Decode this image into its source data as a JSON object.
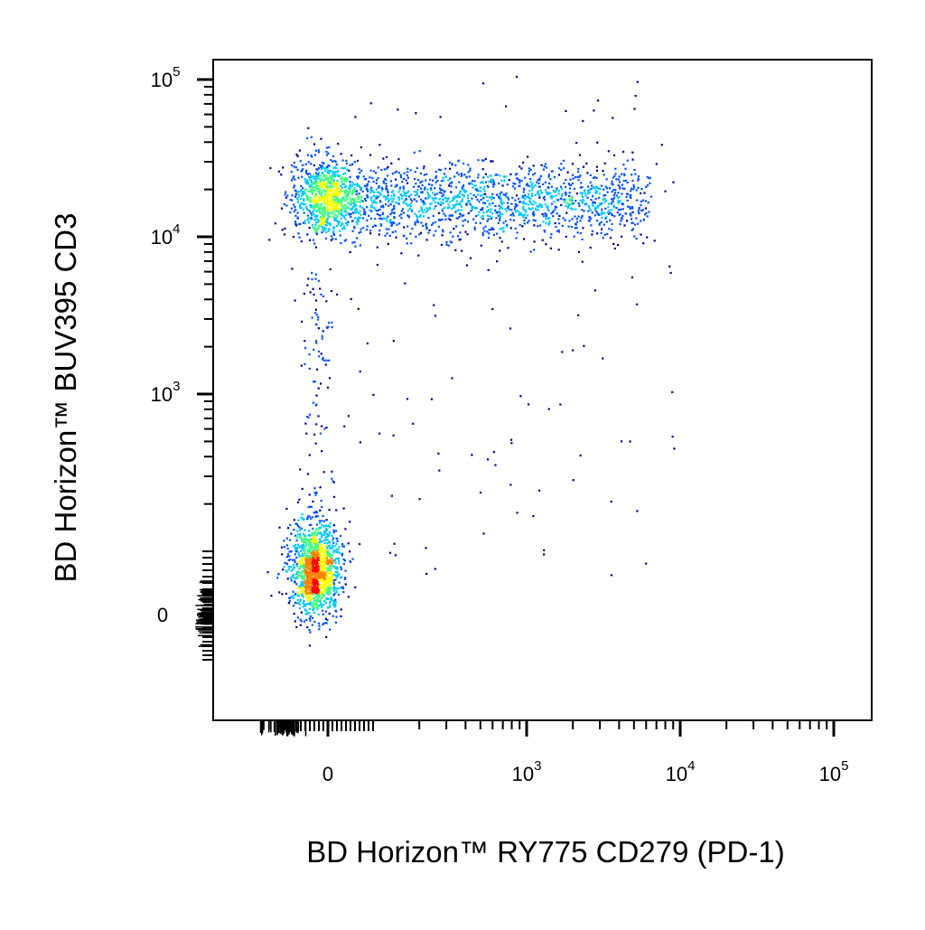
{
  "chart_data": {
    "type": "scatter",
    "title": "",
    "xlabel": "BD Horizon™ RY775 CD279 (PD-1)",
    "ylabel": "BD Horizon™ BUV395 CD3",
    "x_scale": "biexponential",
    "y_scale": "biexponential",
    "xlim": [
      -100,
      200000
    ],
    "ylim": [
      -150,
      250000
    ],
    "x_ticks": [
      {
        "base": "0",
        "exp": "",
        "value": 0
      },
      {
        "base": "10",
        "exp": "3",
        "value": 1000
      },
      {
        "base": "10",
        "exp": "4",
        "value": 10000
      },
      {
        "base": "10",
        "exp": "5",
        "value": 100000
      }
    ],
    "y_ticks": [
      {
        "base": "0",
        "exp": "",
        "value": 0
      },
      {
        "base": "10",
        "exp": "3",
        "value": 1000
      },
      {
        "base": "10",
        "exp": "4",
        "value": 10000
      },
      {
        "base": "10",
        "exp": "5",
        "value": 100000
      }
    ],
    "colormap": [
      "#00008b",
      "#0050ff",
      "#00c8ff",
      "#40ff80",
      "#ffff00",
      "#ff8000",
      "#ff0000"
    ],
    "grid": false,
    "legend": "none",
    "populations": [
      {
        "x_center": 0,
        "y_center": 100,
        "x_spread": 40,
        "y_spread": 120,
        "count": 1400,
        "peak_color": "#ff0000"
      },
      {
        "x_center": 0,
        "y_center": 30000,
        "x_spread": 40,
        "y_spread": 9000,
        "count": 900,
        "peak_color": "#40ff80"
      },
      {
        "x_center": 2000,
        "y_center": 28000,
        "x_spread_decades": 0.7,
        "y_spread": 8000,
        "count": 1500,
        "peak_color": "#00c8ff"
      }
    ]
  }
}
